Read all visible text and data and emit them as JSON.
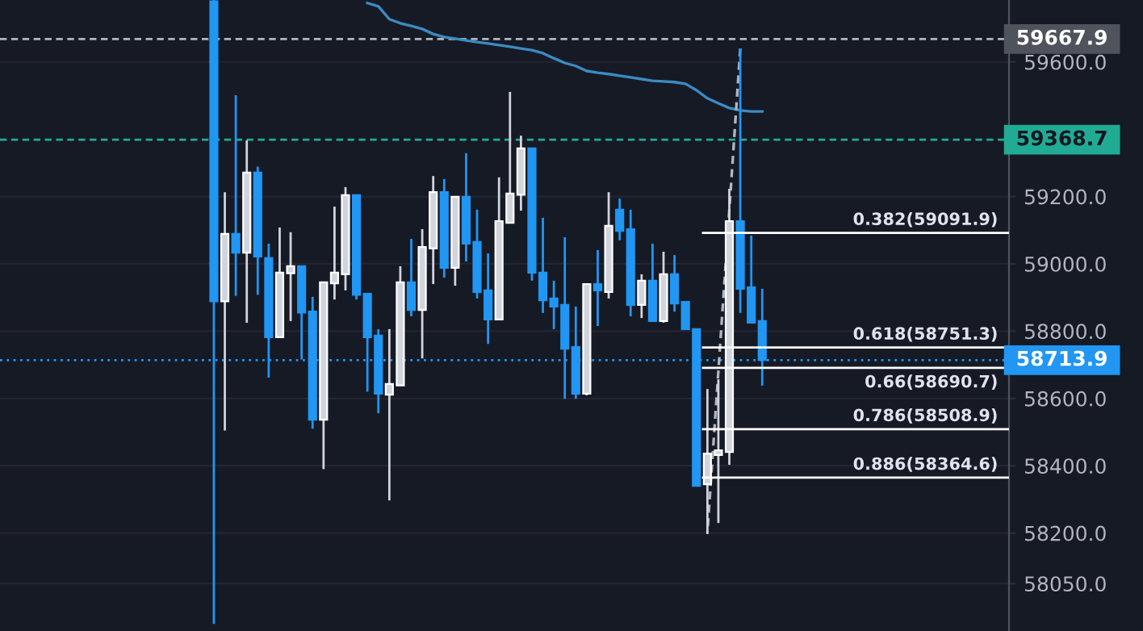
{
  "chart_data": {
    "type": "candlestick",
    "categories": [
      null,
      null,
      null,
      null,
      null,
      null,
      null,
      null,
      null,
      null,
      null,
      null,
      null,
      null,
      null,
      null,
      null,
      null,
      null,
      null,
      null,
      null,
      null,
      null,
      null,
      null,
      null,
      null,
      null,
      null,
      null,
      null,
      null,
      null,
      null,
      null,
      null,
      null,
      null,
      null,
      null,
      null,
      null,
      null,
      null,
      null,
      null,
      null,
      null,
      null,
      null,
      null,
      null,
      null,
      null,
      null,
      null,
      null,
      null,
      null,
      null,
      null,
      null,
      null,
      null,
      null,
      null,
      null,
      null,
      null,
      null,
      null,
      null,
      null,
      null,
      null,
      null,
      null,
      null,
      null,
      null,
      null,
      null,
      null,
      null,
      null,
      null,
      null,
      null,
      null,
      null,
      null
    ],
    "ohlc": [
      null,
      null,
      null,
      null,
      null,
      null,
      null,
      null,
      null,
      null,
      null,
      null,
      null,
      null,
      null,
      null,
      null,
      null,
      null,
      [
        59780,
        59784,
        57930,
        58889
      ],
      [
        58889,
        59213,
        58505,
        59089
      ],
      [
        59089,
        59501,
        58905,
        59033
      ],
      [
        59033,
        59367,
        58825,
        59271
      ],
      [
        59271,
        59289,
        58908,
        59022
      ],
      [
        59017,
        59060,
        58662,
        58782
      ],
      [
        58782,
        59108,
        58782,
        58974
      ],
      [
        58972,
        59094,
        58830,
        58993
      ],
      [
        58993,
        58993,
        58716,
        58855
      ],
      [
        58858,
        58902,
        58510,
        58537
      ],
      [
        58537,
        58945,
        58390,
        58945
      ],
      [
        58942,
        59170,
        58894,
        58974
      ],
      [
        58969,
        59228,
        58921,
        59204
      ],
      [
        59204,
        59204,
        58894,
        58908
      ],
      [
        58911,
        58911,
        58620,
        58782
      ],
      [
        58787,
        58806,
        58556,
        58614
      ],
      [
        58611,
        58806,
        58297,
        58643
      ],
      [
        58639,
        58993,
        58639,
        58945
      ],
      [
        58945,
        59074,
        58844,
        58863
      ],
      [
        58863,
        59103,
        58719,
        59050
      ],
      [
        59046,
        59261,
        58940,
        59213
      ],
      [
        59213,
        59252,
        58959,
        58988
      ],
      [
        58988,
        59199,
        58935,
        59199
      ],
      [
        59199,
        59329,
        59007,
        59060
      ],
      [
        59065,
        59161,
        58897,
        58916
      ],
      [
        58921,
        59031,
        58762,
        58835
      ],
      [
        58835,
        59257,
        58835,
        59127
      ],
      [
        59122,
        59511,
        59122,
        59209
      ],
      [
        59205,
        59381,
        59158,
        59343
      ],
      [
        59343,
        59343,
        58950,
        58974
      ],
      [
        58974,
        59137,
        58854,
        58892
      ],
      [
        58897,
        58950,
        58806,
        58873
      ],
      [
        58878,
        59079,
        58599,
        58748
      ],
      [
        58753,
        58873,
        58599,
        58614
      ],
      [
        58614,
        58940,
        58609,
        58940
      ],
      [
        58940,
        59041,
        58815,
        58921
      ],
      [
        58916,
        59213,
        58897,
        59113
      ],
      [
        59161,
        59194,
        59070,
        59098
      ],
      [
        59103,
        59161,
        58844,
        58878
      ],
      [
        58878,
        58969,
        58839,
        58950
      ],
      [
        58950,
        59060,
        58830,
        58830
      ],
      [
        58830,
        59036,
        58825,
        58969
      ],
      [
        58969,
        59026,
        58858,
        58882
      ],
      [
        58887,
        58887,
        58806,
        58806
      ],
      [
        58806,
        58806,
        58340,
        58340
      ],
      [
        58345,
        58628,
        58197,
        58436
      ],
      [
        58432,
        58657,
        58230,
        58446
      ],
      [
        58441,
        59223,
        58403,
        59127
      ],
      [
        59127,
        59640,
        58854,
        58926
      ],
      [
        58930,
        59084,
        58825,
        58825
      ],
      [
        58830,
        58926,
        58638,
        58714
      ],
      null,
      null,
      null,
      null,
      null,
      null,
      null,
      null,
      null,
      null,
      null,
      null,
      null,
      null,
      null,
      null,
      null,
      null,
      null,
      null,
      null,
      null
    ],
    "colors": [
      null,
      null,
      null,
      null,
      null,
      null,
      null,
      null,
      null,
      null,
      null,
      null,
      null,
      null,
      null,
      null,
      null,
      null,
      null,
      "#2196f3",
      "#d1d4dc",
      "#2196f3",
      "#d1d4dc",
      "#2196f3",
      "#2196f3",
      "#d1d4dc",
      "#d1d4dc",
      "#2196f3",
      "#2196f3",
      "#d1d4dc",
      "#d1d4dc",
      "#d1d4dc",
      "#2196f3",
      "#2196f3",
      "#2196f3",
      "#d1d4dc",
      "#d1d4dc",
      "#2196f3",
      "#d1d4dc",
      "#d1d4dc",
      "#2196f3",
      "#d1d4dc",
      "#2196f3",
      "#2196f3",
      "#2196f3",
      "#d1d4dc",
      "#d1d4dc",
      "#d1d4dc",
      "#2196f3",
      "#2196f3",
      "#2196f3",
      "#2196f3",
      "#2196f3",
      "#d1d4dc",
      "#2196f3",
      "#d1d4dc",
      "#2196f3",
      "#2196f3",
      "#d1d4dc",
      "#2196f3",
      "#d1d4dc",
      "#2196f3",
      "#2196f3",
      "#2196f3",
      "#d1d4dc",
      "#d1d4dc",
      "#d1d4dc",
      "#2196f3",
      "#2196f3",
      "#2196f3",
      null,
      null,
      null,
      null,
      null,
      null,
      null,
      null,
      null,
      null,
      null,
      null,
      null,
      null,
      null,
      null,
      null,
      null,
      null,
      null,
      null,
      null
    ],
    "series": [
      {
        "type": "line",
        "color": "#3b8bc2",
        "line_style": "solid",
        "values": [
          null,
          null,
          null,
          null,
          null,
          null,
          null,
          null,
          null,
          null,
          null,
          null,
          null,
          null,
          null,
          null,
          null,
          null,
          null,
          null,
          null,
          null,
          null,
          null,
          null,
          null,
          null,
          null,
          null,
          null,
          null,
          null,
          null,
          59775,
          59765,
          59727,
          59715,
          59707,
          59698,
          59683,
          59674,
          59669,
          59664,
          59659,
          59655,
          59650,
          59645,
          59640,
          59635,
          59626,
          59611,
          59597,
          59588,
          59573,
          59568,
          59564,
          59559,
          59554,
          59549,
          59544,
          59542,
          59540,
          59535,
          59516,
          59492,
          59477,
          59463,
          59456,
          59453,
          59453,
          null,
          null,
          null,
          null,
          null,
          null,
          null,
          null,
          null,
          null,
          null,
          null,
          null,
          null,
          null,
          null,
          null,
          null,
          null,
          null,
          null,
          null
        ]
      },
      {
        "type": "line",
        "color": "#b2b5be",
        "line_style": "dashed",
        "values": [
          null,
          null,
          null,
          null,
          null,
          null,
          null,
          null,
          null,
          null,
          null,
          null,
          null,
          null,
          null,
          null,
          null,
          null,
          null,
          null,
          null,
          null,
          null,
          null,
          null,
          null,
          null,
          null,
          null,
          null,
          null,
          null,
          null,
          null,
          null,
          null,
          null,
          null,
          null,
          null,
          null,
          null,
          null,
          null,
          null,
          null,
          null,
          null,
          null,
          null,
          null,
          null,
          null,
          null,
          null,
          null,
          null,
          null,
          null,
          null,
          null,
          null,
          null,
          null,
          58201,
          null,
          null,
          59640,
          null,
          null,
          null,
          null,
          null,
          null,
          null,
          null,
          null,
          null,
          null,
          null,
          null,
          null,
          null,
          null,
          null,
          null,
          null,
          null,
          null,
          null,
          null,
          null
        ]
      }
    ],
    "ylim": [
      57909,
      59784
    ],
    "yticks": [
      {
        "value": 59600,
        "label": "59600.0"
      },
      {
        "value": 59200,
        "label": "59200.0"
      },
      {
        "value": 59000,
        "label": "59000.0"
      },
      {
        "value": 58800,
        "label": "58800.0"
      },
      {
        "value": 58600,
        "label": "58600.0"
      },
      {
        "value": 58400,
        "label": "58400.0"
      },
      {
        "value": 58200,
        "label": "58200.0"
      },
      {
        "value": 58050,
        "label": "58050.0"
      }
    ],
    "tick_labels": "y",
    "grid": "y",
    "ref_lines": [
      {
        "axis": "y",
        "value": 59667.9,
        "label": "59667.9",
        "color": "#b2b5be",
        "line_style": "dashed"
      },
      {
        "axis": "y",
        "value": 59368.7,
        "label": "59368.7",
        "color": "#22ab94",
        "line_style": "dashed"
      },
      {
        "axis": "y",
        "value": 58713.9,
        "label": "58713.9",
        "color": "#2196f3",
        "line_style": "dotted"
      },
      {
        "axis": "y",
        "value": 59091.9,
        "label": "0.382(59091.9)",
        "color": "#ffffff",
        "line_style": "solid"
      },
      {
        "axis": "y",
        "value": 58751.3,
        "label": "0.618(58751.3)",
        "color": "#ffffff",
        "line_style": "solid"
      },
      {
        "axis": "y",
        "value": 58690.7,
        "label": "0.66(58690.7)",
        "color": "#ffffff",
        "line_style": "solid"
      },
      {
        "axis": "y",
        "value": 58508.9,
        "label": "0.786(58508.9)",
        "color": "#ffffff",
        "line_style": "solid"
      },
      {
        "axis": "y",
        "value": 58364.6,
        "label": "0.886(58364.6)",
        "color": "#ffffff",
        "line_style": "solid"
      }
    ]
  }
}
